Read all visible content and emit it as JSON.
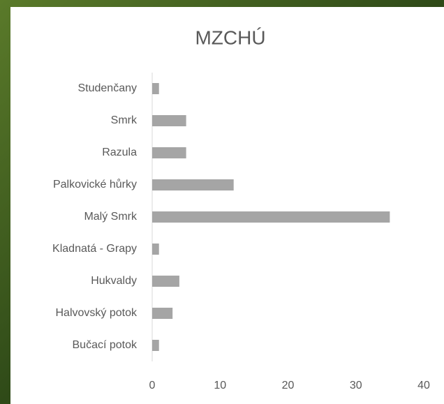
{
  "chart_data": {
    "type": "barh",
    "title": "MZCHÚ",
    "categories": [
      "Studenčany",
      "Smrk",
      "Razula",
      "Palkovické hůrky",
      "Malý Smrk",
      "Kladnatá - Grapy",
      "Hukvaldy",
      "Halvovský potok",
      "Bučací potok"
    ],
    "values": [
      1,
      5,
      5,
      12,
      35,
      1,
      4,
      3,
      1
    ],
    "color": "#a5a5a5",
    "xlim": [
      0,
      40
    ],
    "xticks": [
      0,
      10,
      20,
      30,
      40
    ],
    "grid": false
  }
}
